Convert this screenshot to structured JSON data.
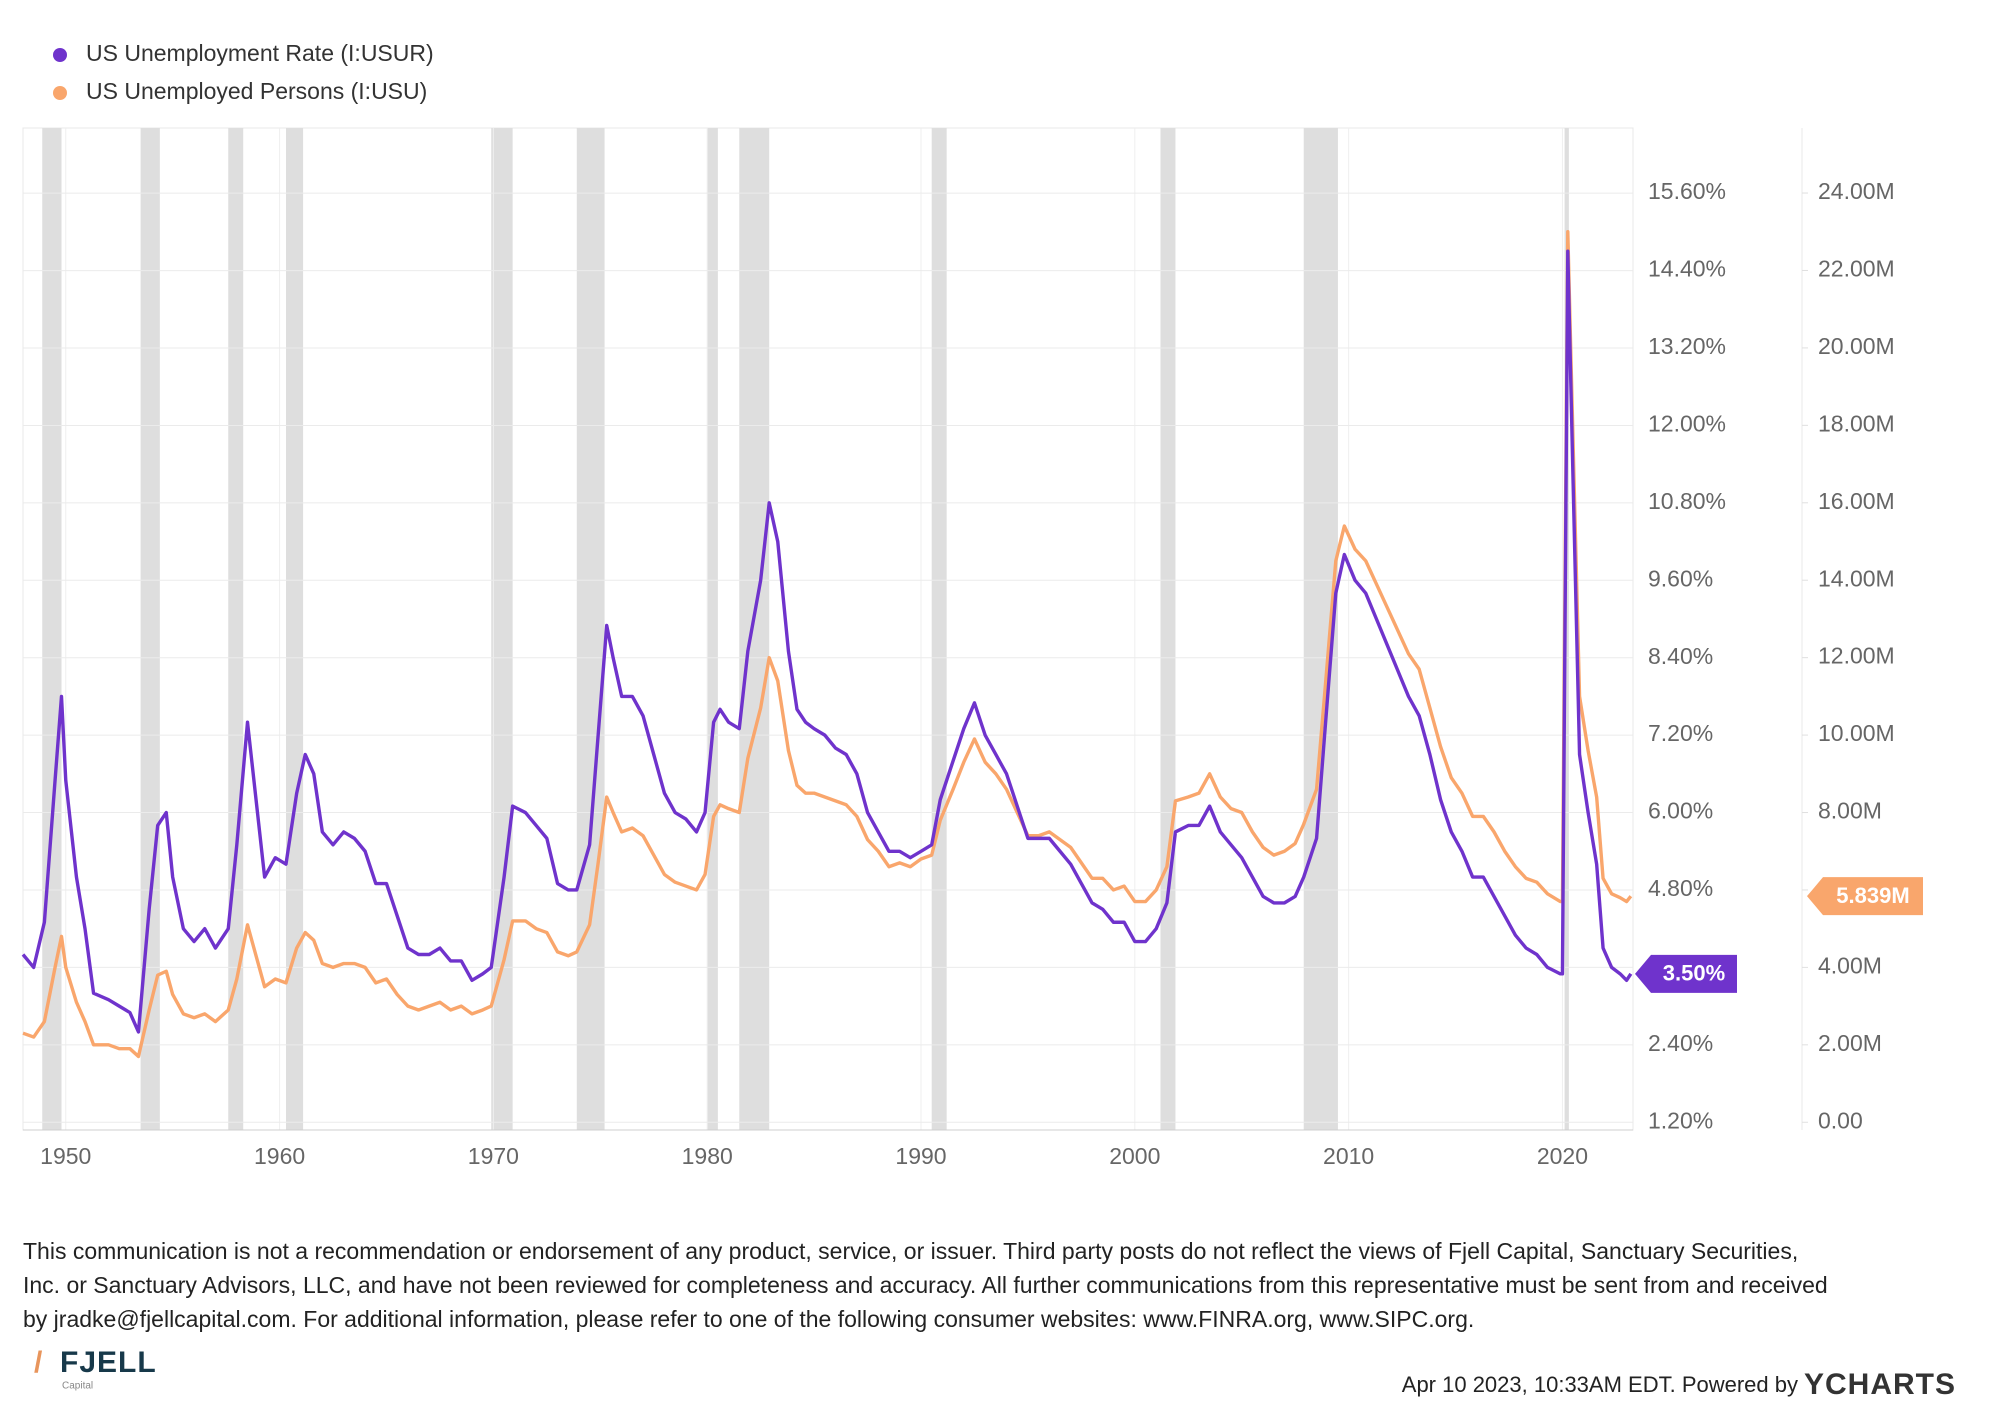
{
  "chart_data": {
    "type": "line",
    "x": [
      1948.0,
      1948.5,
      1949.0,
      1949.5,
      1949.8,
      1950.0,
      1950.5,
      1950.9,
      1951.3,
      1952.0,
      1952.5,
      1953.0,
      1953.4,
      1953.9,
      1954.3,
      1954.7,
      1955.0,
      1955.5,
      1956.0,
      1956.5,
      1957.0,
      1957.6,
      1958.0,
      1958.5,
      1958.9,
      1959.3,
      1959.8,
      1960.3,
      1960.8,
      1961.2,
      1961.6,
      1962.0,
      1962.5,
      1963.0,
      1963.5,
      1964.0,
      1964.5,
      1965.0,
      1965.5,
      1966.0,
      1966.5,
      1967.0,
      1967.5,
      1968.0,
      1968.5,
      1969.0,
      1969.5,
      1969.9,
      1970.5,
      1970.9,
      1971.5,
      1972.0,
      1972.5,
      1973.0,
      1973.5,
      1973.9,
      1974.5,
      1974.9,
      1975.3,
      1975.6,
      1976.0,
      1976.5,
      1977.0,
      1977.5,
      1978.0,
      1978.5,
      1979.0,
      1979.5,
      1979.9,
      1980.3,
      1980.6,
      1981.0,
      1981.5,
      1981.9,
      1982.5,
      1982.9,
      1983.3,
      1983.8,
      1984.2,
      1984.6,
      1985.0,
      1985.5,
      1986.0,
      1986.5,
      1987.0,
      1987.5,
      1988.0,
      1988.5,
      1989.0,
      1989.5,
      1990.0,
      1990.5,
      1990.9,
      1991.5,
      1992.0,
      1992.5,
      1993.0,
      1993.5,
      1994.0,
      1994.5,
      1995.0,
      1995.5,
      1996.0,
      1996.5,
      1997.0,
      1997.5,
      1998.0,
      1998.5,
      1999.0,
      1999.5,
      2000.0,
      2000.5,
      2001.0,
      2001.5,
      2001.9,
      2002.5,
      2003.0,
      2003.5,
      2004.0,
      2004.5,
      2005.0,
      2005.5,
      2006.0,
      2006.5,
      2007.0,
      2007.5,
      2007.9,
      2008.5,
      2008.9,
      2009.4,
      2009.8,
      2010.3,
      2010.8,
      2011.3,
      2011.8,
      2012.3,
      2012.8,
      2013.3,
      2013.8,
      2014.3,
      2014.8,
      2015.3,
      2015.8,
      2016.3,
      2016.8,
      2017.3,
      2017.8,
      2018.3,
      2018.8,
      2019.3,
      2019.9,
      2020.0,
      2020.25,
      2020.5,
      2020.8,
      2021.2,
      2021.6,
      2021.9,
      2022.3,
      2022.7,
      2023.0,
      2023.2
    ],
    "xlim": [
      1948,
      2023.3
    ],
    "xticks": [
      1950,
      1960,
      1970,
      1980,
      1990,
      2000,
      2010,
      2020
    ],
    "ylim": [
      1.08,
      16.61
    ],
    "yticks": [
      {
        "value": 1.2,
        "label": "1.20%"
      },
      {
        "value": 2.4,
        "label": "2.40%"
      },
      {
        "value": 3.6,
        "label": "3.60%"
      },
      {
        "value": 4.8,
        "label": "4.80%"
      },
      {
        "value": 6.0,
        "label": "6.00%"
      },
      {
        "value": 7.2,
        "label": "7.20%"
      },
      {
        "value": 8.4,
        "label": "8.40%"
      },
      {
        "value": 9.6,
        "label": "9.60%"
      },
      {
        "value": 10.8,
        "label": "10.80%"
      },
      {
        "value": 12.0,
        "label": "12.00%"
      },
      {
        "value": 13.2,
        "label": "13.20%"
      },
      {
        "value": 14.4,
        "label": "14.40%"
      },
      {
        "value": 15.6,
        "label": "15.60%"
      }
    ],
    "y2lim": [
      -0.2,
      25.68
    ],
    "y2ticks": [
      {
        "value": 0,
        "label": "0.00"
      },
      {
        "value": 2,
        "label": "2.00M"
      },
      {
        "value": 4,
        "label": "4.00M"
      },
      {
        "value": 6,
        "label": "6.00M"
      },
      {
        "value": 8,
        "label": "8.00M"
      },
      {
        "value": 10,
        "label": "10.00M"
      },
      {
        "value": 12,
        "label": "12.00M"
      },
      {
        "value": 14,
        "label": "14.00M"
      },
      {
        "value": 16,
        "label": "16.00M"
      },
      {
        "value": 18,
        "label": "18.00M"
      },
      {
        "value": 20,
        "label": "20.00M"
      },
      {
        "value": 22,
        "label": "22.00M"
      },
      {
        "value": 24,
        "label": "24.00M"
      }
    ],
    "grid": true,
    "legend": "top-left",
    "recession_color": "#dedede",
    "recessions": [
      [
        1948.9,
        1949.8
      ],
      [
        1953.5,
        1954.4
      ],
      [
        1957.6,
        1958.3
      ],
      [
        1960.3,
        1961.1
      ],
      [
        1969.9,
        1970.9
      ],
      [
        1973.9,
        1975.2
      ],
      [
        1980.0,
        1980.5
      ],
      [
        1981.5,
        1982.9
      ],
      [
        1990.5,
        1991.2
      ],
      [
        2001.2,
        2001.9
      ],
      [
        2007.9,
        2009.5
      ],
      [
        2020.1,
        2020.3
      ]
    ],
    "series": [
      {
        "name": "US Unemployment Rate (I:USUR)",
        "color": "#6f33cc",
        "values": [
          3.8,
          3.6,
          4.3,
          6.5,
          7.8,
          6.5,
          5.0,
          4.2,
          3.2,
          3.1,
          3.0,
          2.9,
          2.6,
          4.5,
          5.8,
          6.0,
          5.0,
          4.2,
          4.0,
          4.2,
          3.9,
          4.2,
          5.5,
          7.4,
          6.2,
          5.0,
          5.3,
          5.2,
          6.3,
          6.9,
          6.6,
          5.7,
          5.5,
          5.7,
          5.6,
          5.4,
          4.9,
          4.9,
          4.4,
          3.9,
          3.8,
          3.8,
          3.9,
          3.7,
          3.7,
          3.4,
          3.5,
          3.6,
          5.0,
          6.1,
          6.0,
          5.8,
          5.6,
          4.9,
          4.8,
          4.8,
          5.5,
          7.2,
          8.9,
          8.4,
          7.8,
          7.8,
          7.5,
          6.9,
          6.3,
          6.0,
          5.9,
          5.7,
          6.0,
          7.4,
          7.6,
          7.4,
          7.3,
          8.5,
          9.6,
          10.8,
          10.2,
          8.5,
          7.6,
          7.4,
          7.3,
          7.2,
          7.0,
          6.9,
          6.6,
          6.0,
          5.7,
          5.4,
          5.4,
          5.3,
          5.4,
          5.5,
          6.2,
          6.8,
          7.3,
          7.7,
          7.2,
          6.9,
          6.6,
          6.1,
          5.6,
          5.6,
          5.6,
          5.4,
          5.2,
          4.9,
          4.6,
          4.5,
          4.3,
          4.3,
          4.0,
          4.0,
          4.2,
          4.6,
          5.7,
          5.8,
          5.8,
          6.1,
          5.7,
          5.5,
          5.3,
          5.0,
          4.7,
          4.6,
          4.6,
          4.7,
          5.0,
          5.6,
          7.3,
          9.4,
          10.0,
          9.6,
          9.4,
          9.0,
          8.6,
          8.2,
          7.8,
          7.5,
          6.9,
          6.2,
          5.7,
          5.4,
          5.0,
          5.0,
          4.7,
          4.4,
          4.1,
          3.9,
          3.8,
          3.6,
          3.5,
          3.5,
          14.7,
          11.1,
          6.9,
          6.0,
          5.2,
          3.9,
          3.6,
          3.5,
          3.4,
          3.5
        ],
        "value_labels": [
          null,
          null,
          null,
          null,
          null,
          null,
          null,
          null,
          null,
          null,
          null,
          null,
          null,
          null,
          null,
          null,
          null,
          null,
          null,
          null,
          null,
          null,
          null,
          null,
          null,
          null,
          null,
          null,
          null,
          null,
          null,
          null,
          null,
          null,
          null,
          null,
          null,
          null,
          null,
          null,
          null,
          null,
          null,
          null,
          null,
          null,
          null,
          null,
          null,
          null,
          null,
          null,
          null,
          null,
          null,
          null,
          null,
          null,
          null,
          null,
          null,
          null,
          null,
          null,
          null,
          null,
          null,
          null,
          null,
          null,
          null,
          null,
          null,
          null,
          null,
          null,
          null,
          null,
          null,
          null,
          null,
          null,
          null,
          null,
          null,
          null,
          null,
          null,
          null,
          null,
          null,
          null,
          null,
          null,
          null,
          null,
          null,
          null,
          null,
          null,
          null,
          null,
          null,
          null,
          null,
          null,
          null,
          null,
          null,
          null,
          null,
          null,
          null,
          null,
          null,
          null,
          null,
          null,
          null,
          null,
          null,
          null,
          null,
          null,
          null,
          null,
          null,
          null,
          null,
          null,
          null,
          null,
          null,
          null,
          null,
          null,
          null,
          null,
          null,
          null,
          null,
          null,
          null,
          null,
          null,
          null,
          null,
          null,
          null,
          null,
          null,
          null,
          null,
          null,
          null,
          null,
          null,
          null,
          null,
          null,
          null,
          "3.50%"
        ]
      },
      {
        "name": "US Unemployed Persons (I:USU)",
        "color": "#f9a66c",
        "axis": "y2",
        "values": [
          2.3,
          2.2,
          2.6,
          4.0,
          4.8,
          4.0,
          3.1,
          2.6,
          2.0,
          2.0,
          1.9,
          1.9,
          1.7,
          2.9,
          3.8,
          3.9,
          3.3,
          2.8,
          2.7,
          2.8,
          2.6,
          2.9,
          3.7,
          5.1,
          4.3,
          3.5,
          3.7,
          3.6,
          4.5,
          4.9,
          4.7,
          4.1,
          4.0,
          4.1,
          4.1,
          4.0,
          3.6,
          3.7,
          3.3,
          3.0,
          2.9,
          3.0,
          3.1,
          2.9,
          3.0,
          2.8,
          2.9,
          3.0,
          4.2,
          5.2,
          5.2,
          5.0,
          4.9,
          4.4,
          4.3,
          4.4,
          5.1,
          6.7,
          8.4,
          8.0,
          7.5,
          7.6,
          7.4,
          6.9,
          6.4,
          6.2,
          6.1,
          6.0,
          6.4,
          7.9,
          8.2,
          8.1,
          8.0,
          9.4,
          10.7,
          12.0,
          11.4,
          9.6,
          8.7,
          8.5,
          8.5,
          8.4,
          8.3,
          8.2,
          7.9,
          7.3,
          7.0,
          6.6,
          6.7,
          6.6,
          6.8,
          6.9,
          7.8,
          8.6,
          9.3,
          9.9,
          9.3,
          9.0,
          8.6,
          8.0,
          7.4,
          7.4,
          7.5,
          7.3,
          7.1,
          6.7,
          6.3,
          6.3,
          6.0,
          6.1,
          5.7,
          5.7,
          6.0,
          6.6,
          8.3,
          8.4,
          8.5,
          9.0,
          8.4,
          8.1,
          8.0,
          7.5,
          7.1,
          6.9,
          7.0,
          7.2,
          7.7,
          8.6,
          11.2,
          14.5,
          15.4,
          14.8,
          14.5,
          13.9,
          13.3,
          12.7,
          12.1,
          11.7,
          10.7,
          9.7,
          8.9,
          8.5,
          7.9,
          7.9,
          7.5,
          7.0,
          6.6,
          6.3,
          6.2,
          5.9,
          5.7,
          5.7,
          23.0,
          17.5,
          11.0,
          9.6,
          8.4,
          6.3,
          5.9,
          5.8,
          5.7,
          5.839
        ],
        "value_labels": [
          null,
          null,
          null,
          null,
          null,
          null,
          null,
          null,
          null,
          null,
          null,
          null,
          null,
          null,
          null,
          null,
          null,
          null,
          null,
          null,
          null,
          null,
          null,
          null,
          null,
          null,
          null,
          null,
          null,
          null,
          null,
          null,
          null,
          null,
          null,
          null,
          null,
          null,
          null,
          null,
          null,
          null,
          null,
          null,
          null,
          null,
          null,
          null,
          null,
          null,
          null,
          null,
          null,
          null,
          null,
          null,
          null,
          null,
          null,
          null,
          null,
          null,
          null,
          null,
          null,
          null,
          null,
          null,
          null,
          null,
          null,
          null,
          null,
          null,
          null,
          null,
          null,
          null,
          null,
          null,
          null,
          null,
          null,
          null,
          null,
          null,
          null,
          null,
          null,
          null,
          null,
          null,
          null,
          null,
          null,
          null,
          null,
          null,
          null,
          null,
          null,
          null,
          null,
          null,
          null,
          null,
          null,
          null,
          null,
          null,
          null,
          null,
          null,
          null,
          null,
          null,
          null,
          null,
          null,
          null,
          null,
          null,
          null,
          null,
          null,
          null,
          null,
          null,
          null,
          null,
          null,
          null,
          null,
          null,
          null,
          null,
          null,
          null,
          null,
          null,
          null,
          null,
          null,
          null,
          null,
          null,
          null,
          null,
          null,
          null,
          null,
          null,
          null,
          null,
          null,
          null,
          null,
          null,
          null,
          null,
          null,
          "5.839M"
        ]
      }
    ]
  },
  "footer": {
    "disclaimer": [
      "This communication is not a recommendation or endorsement of any product, service, or issuer. Third party posts do not reflect the views of Fjell Capital, Sanctuary Securities,",
      "Inc. or Sanctuary Advisors, LLC, and have not been reviewed for completeness and accuracy. All further communications from this representative must be sent from and received",
      "by jradke@fjellcapital.com. For additional information, please refer to one of the following consumer websites: www.FINRA.org, www.SIPC.org."
    ],
    "logo": "FJELL",
    "logo_sub": "Capital",
    "timestamp": "Apr 10 2023, 10:33AM EDT. Powered by",
    "brand": "YCHARTS"
  }
}
